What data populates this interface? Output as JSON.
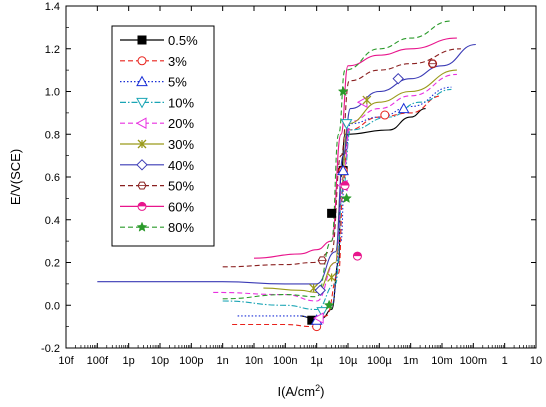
{
  "chart_data": {
    "type": "line",
    "title": "",
    "xlabel": "I(A/cm",
    "xlabel_sup": "2",
    "xlabel_close": ")",
    "ylabel": "E/V(SCE)",
    "x_scale": "log",
    "xlim": [
      1e-14,
      10
    ],
    "ylim": [
      -0.2,
      1.4
    ],
    "x_ticks": [
      {
        "value": 1e-14,
        "label": "10f"
      },
      {
        "value": 1e-13,
        "label": "100f"
      },
      {
        "value": 1e-12,
        "label": "1p"
      },
      {
        "value": 1e-11,
        "label": "10p"
      },
      {
        "value": 1e-10,
        "label": "100p"
      },
      {
        "value": 1e-09,
        "label": "1n"
      },
      {
        "value": 1e-08,
        "label": "10n"
      },
      {
        "value": 1e-07,
        "label": "100n"
      },
      {
        "value": 1e-06,
        "label": "1µ"
      },
      {
        "value": 1e-05,
        "label": "10µ"
      },
      {
        "value": 0.0001,
        "label": "100µ"
      },
      {
        "value": 0.001,
        "label": "1m"
      },
      {
        "value": 0.01,
        "label": "10m"
      },
      {
        "value": 0.1,
        "label": "100m"
      },
      {
        "value": 1,
        "label": "1"
      },
      {
        "value": 10,
        "label": "10"
      }
    ],
    "y_ticks": [
      {
        "value": -0.2,
        "label": "-0.2"
      },
      {
        "value": 0.0,
        "label": "0.0"
      },
      {
        "value": 0.2,
        "label": "0.2"
      },
      {
        "value": 0.4,
        "label": "0.4"
      },
      {
        "value": 0.6,
        "label": "0.6"
      },
      {
        "value": 0.8,
        "label": "0.8"
      },
      {
        "value": 1.0,
        "label": "1.0"
      },
      {
        "value": 1.2,
        "label": "1.2"
      },
      {
        "value": 1.4,
        "label": "1.4"
      }
    ],
    "legend_position": "top-left",
    "series": [
      {
        "name": "0.5%",
        "color": "#000000",
        "dash": "solid",
        "marker": "square-filled",
        "points": [
          [
            3e-07,
            -0.05
          ],
          [
            7e-07,
            -0.06
          ],
          [
            1.5e-06,
            -0.06
          ],
          [
            3e-06,
            -0.02
          ],
          [
            5e-06,
            0.2
          ],
          [
            6e-06,
            0.6
          ],
          [
            8e-06,
            0.8
          ],
          [
            0.0002,
            0.82
          ],
          [
            0.001,
            0.88
          ],
          [
            0.003,
            0.92
          ]
        ],
        "markers": [
          [
            7e-07,
            -0.07
          ],
          [
            3e-06,
            0.43
          ],
          [
            7e-06,
            0.63
          ]
        ]
      },
      {
        "name": "3%",
        "color": "#e8221c",
        "dash": "dashed",
        "marker": "circle-open",
        "points": [
          [
            2e-09,
            -0.09
          ],
          [
            1e-07,
            -0.09
          ],
          [
            8e-07,
            -0.1
          ],
          [
            2e-06,
            -0.05
          ],
          [
            5e-06,
            0.15
          ],
          [
            7e-06,
            0.55
          ],
          [
            1e-05,
            0.82
          ],
          [
            0.0001,
            0.88
          ],
          [
            0.001,
            0.9
          ],
          [
            0.01,
            0.98
          ]
        ],
        "markers": [
          [
            1e-06,
            -0.1
          ],
          [
            7e-06,
            0.63
          ],
          [
            0.00015,
            0.89
          ],
          [
            0.005,
            1.13
          ]
        ]
      },
      {
        "name": "5%",
        "color": "#1a2fd6",
        "dash": "dotted",
        "marker": "triangle-open",
        "points": [
          [
            3e-09,
            -0.05
          ],
          [
            3e-07,
            -0.05
          ],
          [
            1e-06,
            -0.07
          ],
          [
            3e-06,
            0.0
          ],
          [
            6e-06,
            0.3
          ],
          [
            8e-06,
            0.7
          ],
          [
            1.2e-05,
            0.85
          ],
          [
            0.0001,
            0.88
          ],
          [
            0.001,
            0.93
          ],
          [
            0.02,
            1.02
          ]
        ],
        "markers": [
          [
            1e-06,
            -0.07
          ],
          [
            7e-06,
            0.63
          ],
          [
            0.0006,
            0.92
          ]
        ]
      },
      {
        "name": "10%",
        "color": "#1aa5b5",
        "dash": "dashdot",
        "marker": "triangle-down-open",
        "points": [
          [
            1e-09,
            0.02
          ],
          [
            1e-07,
            0.0
          ],
          [
            1e-06,
            -0.02
          ],
          [
            4e-06,
            0.1
          ],
          [
            7e-06,
            0.55
          ],
          [
            1.2e-05,
            0.82
          ],
          [
            0.0002,
            0.88
          ],
          [
            0.002,
            0.95
          ],
          [
            0.02,
            1.01
          ]
        ],
        "markers": [
          [
            1.5e-06,
            -0.03
          ],
          [
            9e-06,
            0.85
          ]
        ]
      },
      {
        "name": "20%",
        "color": "#e830e0",
        "dash": "dashed",
        "marker": "triangle-left-open",
        "points": [
          [
            5e-10,
            0.06
          ],
          [
            1e-07,
            0.05
          ],
          [
            1e-06,
            0.02
          ],
          [
            4e-06,
            0.2
          ],
          [
            7e-06,
            0.6
          ],
          [
            1.2e-05,
            0.86
          ],
          [
            0.0001,
            0.92
          ],
          [
            0.001,
            0.98
          ],
          [
            0.03,
            1.08
          ]
        ],
        "markers": [
          [
            1.2e-06,
            -0.06
          ],
          [
            7e-06,
            0.56
          ],
          [
            3e-05,
            0.95
          ]
        ]
      },
      {
        "name": "30%",
        "color": "#9a9a1a",
        "dash": "solid",
        "marker": "star-x",
        "points": [
          [
            2e-08,
            0.08
          ],
          [
            3e-07,
            0.07
          ],
          [
            1e-06,
            0.06
          ],
          [
            4e-06,
            0.2
          ],
          [
            6e-06,
            0.55
          ],
          [
            1e-05,
            0.85
          ],
          [
            0.0001,
            0.95
          ],
          [
            0.001,
            1.0
          ],
          [
            0.03,
            1.1
          ]
        ],
        "markers": [
          [
            8e-07,
            0.08
          ],
          [
            3e-06,
            0.13
          ],
          [
            4e-05,
            0.96
          ]
        ]
      },
      {
        "name": "40%",
        "color": "#3a3ab5",
        "dash": "solid",
        "marker": "diamond-open",
        "points": [
          [
            1e-13,
            0.11
          ],
          [
            1e-09,
            0.11
          ],
          [
            1e-07,
            0.1
          ],
          [
            1e-06,
            0.1
          ],
          [
            4e-06,
            0.25
          ],
          [
            7e-06,
            0.7
          ],
          [
            1.2e-05,
            0.92
          ],
          [
            0.0001,
            1.0
          ],
          [
            0.001,
            1.06
          ],
          [
            0.01,
            1.12
          ],
          [
            0.12,
            1.22
          ]
        ],
        "markers": [
          [
            1.3e-06,
            0.07
          ],
          [
            0.0004,
            1.06
          ]
        ]
      },
      {
        "name": "50%",
        "color": "#8a2020",
        "dash": "dashed",
        "marker": "hexagon-open",
        "points": [
          [
            1e-09,
            0.18
          ],
          [
            1e-07,
            0.19
          ],
          [
            8e-07,
            0.2
          ],
          [
            3e-06,
            0.25
          ],
          [
            6e-06,
            0.7
          ],
          [
            1.1e-05,
            1.05
          ],
          [
            0.0001,
            1.1
          ],
          [
            0.001,
            1.13
          ],
          [
            0.04,
            1.2
          ]
        ],
        "markers": [
          [
            1.5e-06,
            0.21
          ],
          [
            8e-06,
            0.56
          ],
          [
            0.005,
            1.13
          ]
        ]
      },
      {
        "name": "60%",
        "color": "#e8158c",
        "dash": "solid",
        "marker": "circle-half",
        "points": [
          [
            1e-08,
            0.22
          ],
          [
            3e-07,
            0.24
          ],
          [
            1e-06,
            0.26
          ],
          [
            3e-06,
            0.3
          ],
          [
            6e-06,
            0.8
          ],
          [
            1e-05,
            1.12
          ],
          [
            0.0001,
            1.17
          ],
          [
            0.001,
            1.2
          ],
          [
            0.03,
            1.25
          ]
        ],
        "markers": [
          [
            2e-05,
            0.23
          ],
          [
            8e-06,
            0.56
          ]
        ]
      },
      {
        "name": "80%",
        "color": "#2a9a2a",
        "dash": "dashed",
        "marker": "star-filled",
        "points": [
          [
            1e-09,
            0.03
          ],
          [
            1e-07,
            0.05
          ],
          [
            1e-06,
            0.04
          ],
          [
            3e-06,
            0.3
          ],
          [
            5e-06,
            0.8
          ],
          [
            8e-06,
            1.1
          ],
          [
            0.0001,
            1.2
          ],
          [
            0.001,
            1.25
          ],
          [
            0.02,
            1.33
          ]
        ],
        "markers": [
          [
            2.5e-06,
            0.0
          ],
          [
            9e-06,
            0.5
          ],
          [
            7e-06,
            1.0
          ]
        ]
      }
    ]
  }
}
